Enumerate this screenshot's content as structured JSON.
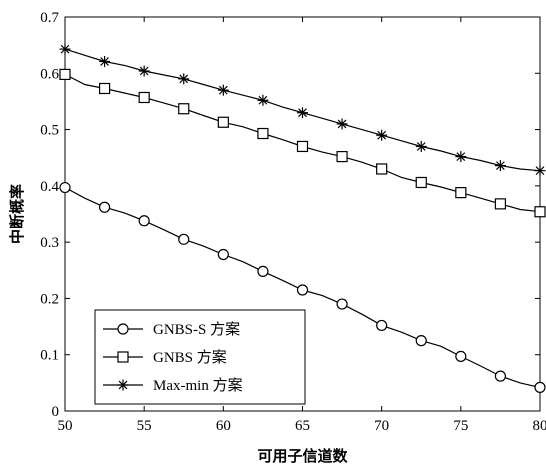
{
  "chart_data": {
    "type": "line",
    "xlabel": "可用子信道数",
    "ylabel": "中断概率",
    "xlim": [
      50,
      80
    ],
    "ylim": [
      0,
      0.7
    ],
    "x_ticks": [
      50,
      55,
      60,
      65,
      70,
      75,
      80
    ],
    "x_tick_labels": [
      "50",
      "55",
      "60",
      "65",
      "70",
      "75",
      "80"
    ],
    "y_ticks": [
      0,
      0.1,
      0.2,
      0.3,
      0.4,
      0.5,
      0.6,
      0.7
    ],
    "y_tick_labels": [
      "0",
      "0.1",
      "0.2",
      "0.3",
      "0.4",
      "0.5",
      "0.6",
      "0.7"
    ],
    "grid": false,
    "legend_position": "bottom-left",
    "series": [
      {
        "name": "GNBS-S 方案",
        "marker": "circle",
        "x": [
          50,
          51.25,
          52.5,
          53.75,
          55,
          56.25,
          57.5,
          58.75,
          60,
          61.25,
          62.5,
          63.75,
          65,
          66.25,
          67.5,
          68.75,
          70,
          71.25,
          72.5,
          73.75,
          75,
          76.25,
          77.5,
          78.75,
          80
        ],
        "y": [
          0.397,
          0.378,
          0.362,
          0.352,
          0.338,
          0.322,
          0.305,
          0.293,
          0.278,
          0.265,
          0.248,
          0.232,
          0.215,
          0.205,
          0.19,
          0.172,
          0.152,
          0.14,
          0.125,
          0.115,
          0.097,
          0.08,
          0.062,
          0.05,
          0.042
        ],
        "marker_every": 2
      },
      {
        "name": "GNBS 方案",
        "marker": "square",
        "x": [
          50,
          51.25,
          52.5,
          53.75,
          55,
          56.25,
          57.5,
          58.75,
          60,
          61.25,
          62.5,
          63.75,
          65,
          66.25,
          67.5,
          68.75,
          70,
          71.25,
          72.5,
          73.75,
          75,
          76.25,
          77.5,
          78.75,
          80
        ],
        "y": [
          0.598,
          0.58,
          0.573,
          0.565,
          0.557,
          0.547,
          0.537,
          0.525,
          0.513,
          0.505,
          0.493,
          0.482,
          0.47,
          0.46,
          0.452,
          0.442,
          0.43,
          0.415,
          0.406,
          0.398,
          0.388,
          0.378,
          0.368,
          0.358,
          0.354
        ],
        "marker_every": 2
      },
      {
        "name": "Max-min 方案",
        "marker": "star",
        "x": [
          50,
          51.25,
          52.5,
          53.75,
          55,
          56.25,
          57.5,
          58.75,
          60,
          61.25,
          62.5,
          63.75,
          65,
          66.25,
          67.5,
          68.75,
          70,
          71.25,
          72.5,
          73.75,
          75,
          76.25,
          77.5,
          78.75,
          80
        ],
        "y": [
          0.643,
          0.632,
          0.621,
          0.614,
          0.604,
          0.597,
          0.59,
          0.58,
          0.57,
          0.561,
          0.552,
          0.54,
          0.53,
          0.52,
          0.51,
          0.5,
          0.49,
          0.48,
          0.47,
          0.462,
          0.452,
          0.445,
          0.436,
          0.43,
          0.427
        ],
        "marker_every": 2
      }
    ]
  }
}
